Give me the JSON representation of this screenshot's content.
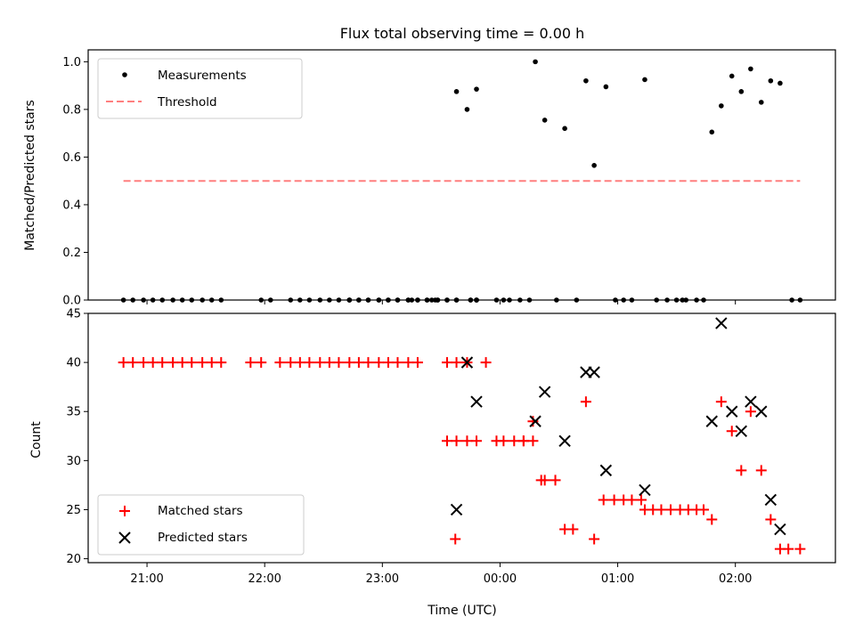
{
  "figure": {
    "background": "#ffffff"
  },
  "chart_data": [
    {
      "type": "scatter",
      "title": "Flux total observing time = 0.00 h",
      "xlabel": "",
      "ylabel": "Matched/Predicted stars",
      "xlim": [
        -3.5,
        2.85
      ],
      "ylim": [
        0,
        1.05
      ],
      "yticks": [
        0.0,
        0.2,
        0.4,
        0.6,
        0.8,
        1.0
      ],
      "ytick_labels": [
        "0.0",
        "0.2",
        "0.4",
        "0.6",
        "0.8",
        "1.0"
      ],
      "xticks": [
        -3,
        -2,
        -1,
        0,
        1,
        2
      ],
      "show_xtick_labels": false,
      "legend": {
        "location": "upper left",
        "entries": [
          "Measurements",
          "Threshold"
        ]
      },
      "series": [
        {
          "name": "Measurements",
          "marker": "dot",
          "color": "#000000",
          "x": [
            -3.2,
            -3.12,
            -3.03,
            -2.95,
            -2.87,
            -2.78,
            -2.7,
            -2.62,
            -2.53,
            -2.45,
            -2.37,
            -2.03,
            -1.95,
            -1.78,
            -1.7,
            -1.62,
            -1.53,
            -1.45,
            -1.37,
            -1.28,
            -1.2,
            -1.12,
            -1.03,
            -0.95,
            -0.87,
            -0.78,
            -0.7,
            -0.62,
            -0.53,
            -0.45,
            -0.37,
            -0.25,
            -0.2,
            -1.28,
            -1.2,
            -1.12,
            -1.03,
            -0.95,
            -0.87,
            -0.78,
            -0.7,
            -0.62,
            -0.53,
            -0.45,
            -0.37,
            -0.25,
            -0.2,
            -1.28,
            -0.2,
            -0.75,
            -0.58,
            -0.55,
            -0.03,
            0.03,
            0.08,
            0.17,
            0.25,
            0.48,
            0.65,
            0.98,
            1.05,
            1.12,
            1.33,
            1.42,
            1.5,
            1.55,
            1.58,
            1.67,
            1.73,
            2.48,
            2.55
          ],
          "y": [
            0,
            0,
            0,
            0,
            0,
            0,
            0,
            0,
            0,
            0,
            0,
            0,
            0,
            0,
            0,
            0,
            0,
            0,
            0,
            0,
            0,
            0,
            0,
            0,
            0,
            0,
            0,
            0,
            0,
            0,
            0,
            0,
            0,
            0,
            0,
            0,
            0,
            0,
            0,
            0,
            0,
            0,
            0,
            0,
            0,
            0,
            0,
            0,
            0,
            0,
            0,
            0,
            0,
            0,
            0,
            0,
            0,
            0,
            0,
            0,
            0,
            0,
            0,
            0,
            0,
            0,
            0,
            0,
            0,
            0,
            0
          ]
        },
        {
          "name": "Measurements_nonzero",
          "marker": "dot",
          "color": "#000000",
          "x": [
            -0.37,
            -0.28,
            -0.2,
            0.3,
            0.38,
            0.55,
            0.73,
            0.8,
            0.9,
            1.23,
            1.8,
            1.88,
            1.97,
            2.05,
            2.13,
            2.22,
            2.3,
            2.38
          ],
          "y": [
            0.875,
            0.8,
            0.885,
            1.0,
            0.755,
            0.72,
            0.92,
            0.565,
            0.895,
            0.925,
            0.705,
            0.815,
            0.94,
            0.875,
            0.97,
            0.83,
            0.92,
            0.91
          ]
        },
        {
          "name": "Threshold",
          "marker": "dashed-line",
          "color": "#ff7f7f",
          "x": [
            -3.2,
            2.55
          ],
          "y": [
            0.5,
            0.5
          ]
        }
      ]
    },
    {
      "type": "scatter",
      "title": "",
      "xlabel": "Time (UTC)",
      "ylabel": "Count",
      "xlim": [
        -3.5,
        2.85
      ],
      "ylim": [
        19.6,
        45
      ],
      "yticks": [
        20,
        25,
        30,
        35,
        40,
        45
      ],
      "ytick_labels": [
        "20",
        "25",
        "30",
        "35",
        "40",
        "45"
      ],
      "xticks": [
        -3,
        -2,
        -1,
        0,
        1,
        2
      ],
      "xtick_labels": [
        "21:00",
        "22:00",
        "23:00",
        "00:00",
        "01:00",
        "02:00"
      ],
      "legend": {
        "location": "lower left",
        "entries": [
          "Matched stars",
          "Predicted stars"
        ]
      },
      "series": [
        {
          "name": "Matched stars",
          "marker": "plus",
          "color": "#ff0000",
          "x": [
            -3.2,
            -3.12,
            -3.03,
            -2.95,
            -2.87,
            -2.78,
            -2.7,
            -2.62,
            -2.53,
            -2.45,
            -2.37,
            -2.12,
            -2.03,
            -1.87,
            -1.78,
            -1.7,
            -1.62,
            -1.53,
            -1.45,
            -1.37,
            -1.28,
            -1.2,
            -1.12,
            -1.03,
            -0.95,
            -0.87,
            -0.78,
            -0.7,
            -0.45,
            -0.37,
            -0.28,
            -0.12,
            -0.03,
            0.28,
            0.2,
            0.12,
            0.03,
            0.2,
            -0.45,
            -0.37,
            -0.28,
            -0.2,
            0.28,
            0.35,
            0.38,
            0.47,
            0.55,
            0.62,
            0.73,
            0.8,
            0.88,
            0.97,
            1.05,
            1.12,
            1.2,
            1.23,
            1.3,
            1.37,
            1.45,
            1.53,
            1.6,
            1.67,
            1.73,
            1.8,
            1.88,
            1.97,
            2.05,
            2.13,
            2.22,
            2.3,
            2.38,
            2.45,
            2.55,
            -0.38
          ],
          "y": [
            40,
            40,
            40,
            40,
            40,
            40,
            40,
            40,
            40,
            40,
            40,
            40,
            40,
            40,
            40,
            40,
            40,
            40,
            40,
            40,
            40,
            40,
            40,
            40,
            40,
            40,
            40,
            40,
            40,
            40,
            40,
            40,
            32,
            32,
            32,
            32,
            32,
            32,
            32,
            32,
            32,
            32,
            34,
            28,
            28,
            28,
            23,
            23,
            36,
            22,
            26,
            26,
            26,
            26,
            26,
            25,
            25,
            25,
            25,
            25,
            25,
            25,
            25,
            24,
            36,
            33,
            29,
            35,
            29,
            24,
            21,
            21,
            21,
            22
          ]
        },
        {
          "name": "Predicted stars",
          "marker": "x",
          "color": "#000000",
          "x": [
            -0.37,
            -0.28,
            -0.2,
            0.3,
            0.38,
            0.55,
            0.73,
            0.8,
            0.9,
            1.23,
            1.8,
            1.88,
            1.97,
            2.05,
            2.13,
            2.22,
            2.3,
            2.38
          ],
          "y": [
            25,
            40,
            36,
            34,
            37,
            32,
            39,
            39,
            29,
            27,
            34,
            44,
            35,
            33,
            36,
            35,
            26,
            23
          ]
        }
      ]
    }
  ]
}
